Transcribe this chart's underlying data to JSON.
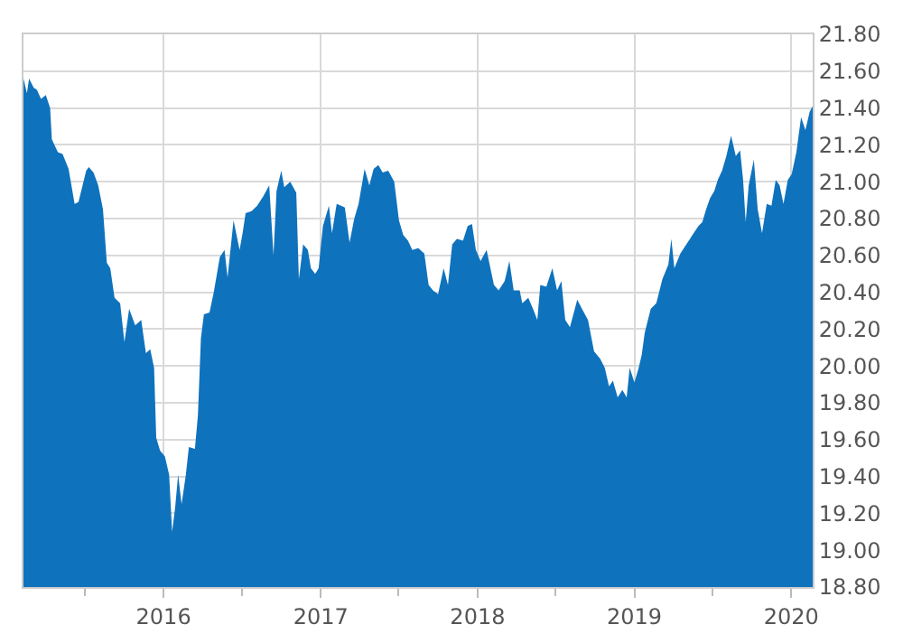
{
  "chart_data": {
    "type": "area",
    "x": [
      "2015-02-09",
      "2015-02-17",
      "2015-02-22",
      "2015-03-05",
      "2015-03-12",
      "2015-03-22",
      "2015-04-02",
      "2015-04-12",
      "2015-04-16",
      "2015-04-30",
      "2015-05-11",
      "2015-05-25",
      "2015-06-08",
      "2015-06-17",
      "2015-07-05",
      "2015-07-11",
      "2015-07-22",
      "2015-08-02",
      "2015-08-13",
      "2015-08-22",
      "2015-08-30",
      "2015-09-09",
      "2015-09-22",
      "2015-10-02",
      "2015-10-13",
      "2015-10-27",
      "2015-11-10",
      "2015-11-21",
      "2015-12-01",
      "2015-12-10",
      "2015-12-15",
      "2015-12-24",
      "2016-01-04",
      "2016-01-14",
      "2016-01-21",
      "2016-01-28",
      "2016-02-04",
      "2016-02-12",
      "2016-02-22",
      "2016-02-29",
      "2016-03-14",
      "2016-03-21",
      "2016-03-28",
      "2016-04-04",
      "2016-04-17",
      "2016-04-27",
      "2016-05-11",
      "2016-05-22",
      "2016-05-29",
      "2016-06-12",
      "2016-06-26",
      "2016-07-03",
      "2016-07-10",
      "2016-07-24",
      "2016-08-06",
      "2016-08-20",
      "2016-09-03",
      "2016-09-13",
      "2016-09-20",
      "2016-10-01",
      "2016-10-08",
      "2016-10-22",
      "2016-11-05",
      "2016-11-11",
      "2016-11-21",
      "2016-12-02",
      "2016-12-09",
      "2016-12-19",
      "2016-12-27",
      "2017-01-06",
      "2017-01-20",
      "2017-01-27",
      "2017-02-07",
      "2017-02-17",
      "2017-02-26",
      "2017-03-09",
      "2017-03-20",
      "2017-03-30",
      "2017-04-13",
      "2017-04-24",
      "2017-05-04",
      "2017-05-15",
      "2017-05-25",
      "2017-06-07",
      "2017-06-21",
      "2017-07-02",
      "2017-07-12",
      "2017-07-23",
      "2017-08-02",
      "2017-08-16",
      "2017-08-30",
      "2017-09-09",
      "2017-09-19",
      "2017-10-01",
      "2017-10-14",
      "2017-10-24",
      "2017-11-03",
      "2017-11-14",
      "2017-11-28",
      "2017-12-09",
      "2017-12-19",
      "2017-12-28",
      "2018-01-08",
      "2018-01-22",
      "2018-02-08",
      "2018-02-19",
      "2018-03-05",
      "2018-03-16",
      "2018-03-26",
      "2018-04-09",
      "2018-04-15",
      "2018-04-29",
      "2018-05-10",
      "2018-05-20",
      "2018-05-27",
      "2018-06-10",
      "2018-06-24",
      "2018-07-05",
      "2018-07-15",
      "2018-07-24",
      "2018-08-04",
      "2018-08-21",
      "2018-09-01",
      "2018-09-15",
      "2018-09-29",
      "2018-10-13",
      "2018-10-24",
      "2018-11-03",
      "2018-11-12",
      "2018-11-23",
      "2018-12-04",
      "2018-12-14",
      "2018-12-21",
      "2019-01-01",
      "2019-01-11",
      "2019-01-18",
      "2019-01-25",
      "2019-02-08",
      "2019-02-21",
      "2019-03-07",
      "2019-03-21",
      "2019-03-28",
      "2019-04-04",
      "2019-04-18",
      "2019-05-02",
      "2019-05-16",
      "2019-05-30",
      "2019-06-08",
      "2019-06-17",
      "2019-06-26",
      "2019-07-06",
      "2019-07-14",
      "2019-07-24",
      "2019-08-03",
      "2019-08-14",
      "2019-08-25",
      "2019-09-04",
      "2019-09-11",
      "2019-09-17",
      "2019-09-24",
      "2019-10-06",
      "2019-10-15",
      "2019-10-25",
      "2019-11-05",
      "2019-11-16",
      "2019-11-26",
      "2019-12-05",
      "2019-12-14",
      "2019-12-24",
      "2020-01-02",
      "2020-01-13",
      "2020-01-24",
      "2020-02-03",
      "2020-02-13",
      "2020-02-20"
    ],
    "series": [
      {
        "color": "#0f72bd",
        "values": [
          21.56,
          21.48,
          21.56,
          21.51,
          21.5,
          21.45,
          21.47,
          21.4,
          21.23,
          21.16,
          21.15,
          21.07,
          20.88,
          20.89,
          21.06,
          21.08,
          21.05,
          20.98,
          20.85,
          20.56,
          20.53,
          20.37,
          20.34,
          20.13,
          20.31,
          20.22,
          20.25,
          20.07,
          20.09,
          19.99,
          19.61,
          19.54,
          19.51,
          19.41,
          19.1,
          19.23,
          19.41,
          19.25,
          19.41,
          19.56,
          19.55,
          19.73,
          20.15,
          20.28,
          20.29,
          20.4,
          20.59,
          20.63,
          20.48,
          20.79,
          20.63,
          20.72,
          20.83,
          20.84,
          20.87,
          20.92,
          20.98,
          20.6,
          20.95,
          21.06,
          20.97,
          21.0,
          20.94,
          20.47,
          20.66,
          20.63,
          20.53,
          20.5,
          20.53,
          20.76,
          20.87,
          20.72,
          20.88,
          20.87,
          20.86,
          20.67,
          20.8,
          20.88,
          21.07,
          20.98,
          21.07,
          21.09,
          21.05,
          21.06,
          21.0,
          20.79,
          20.71,
          20.68,
          20.63,
          20.64,
          20.61,
          20.44,
          20.41,
          20.39,
          20.53,
          20.44,
          20.66,
          20.69,
          20.68,
          20.76,
          20.77,
          20.63,
          20.57,
          20.63,
          20.44,
          20.41,
          20.46,
          20.57,
          20.41,
          20.41,
          20.34,
          20.37,
          20.31,
          20.25,
          20.44,
          20.43,
          20.53,
          20.41,
          20.46,
          20.25,
          20.21,
          20.36,
          20.31,
          20.25,
          20.08,
          20.04,
          19.99,
          19.89,
          19.92,
          19.83,
          19.87,
          19.83,
          19.99,
          19.91,
          19.99,
          20.06,
          20.18,
          20.31,
          20.34,
          20.47,
          20.55,
          20.69,
          20.53,
          20.61,
          20.66,
          20.71,
          20.76,
          20.78,
          20.85,
          20.91,
          20.95,
          21.01,
          21.06,
          21.14,
          21.25,
          21.14,
          21.17,
          21.01,
          20.78,
          20.98,
          21.12,
          20.85,
          20.72,
          20.88,
          20.87,
          21.01,
          20.98,
          20.88,
          21.01,
          21.04,
          21.16,
          21.35,
          21.28,
          21.38,
          21.41
        ]
      }
    ],
    "xlim": [
      "2015-02-09",
      "2020-02-20"
    ],
    "xticks": [
      {
        "value": "2015-07-01",
        "label": null
      },
      {
        "value": "2016-01-01",
        "label": "2016"
      },
      {
        "value": "2016-07-01",
        "label": null
      },
      {
        "value": "2017-01-01",
        "label": "2017"
      },
      {
        "value": "2017-07-01",
        "label": null
      },
      {
        "value": "2018-01-01",
        "label": "2018"
      },
      {
        "value": "2018-07-01",
        "label": null
      },
      {
        "value": "2019-01-01",
        "label": "2019"
      },
      {
        "value": "2019-07-01",
        "label": null
      },
      {
        "value": "2020-01-01",
        "label": "2020"
      }
    ],
    "ylim": [
      18.8,
      21.8
    ],
    "yticks": [
      {
        "value": 18.8,
        "label": "18.80"
      },
      {
        "value": 19.0,
        "label": "19.00"
      },
      {
        "value": 19.2,
        "label": "19.20"
      },
      {
        "value": 19.4,
        "label": "19.40"
      },
      {
        "value": 19.6,
        "label": "19.60"
      },
      {
        "value": 19.8,
        "label": "19.80"
      },
      {
        "value": 20.0,
        "label": "20.00"
      },
      {
        "value": 20.2,
        "label": "20.20"
      },
      {
        "value": 20.4,
        "label": "20.40"
      },
      {
        "value": 20.6,
        "label": "20.60"
      },
      {
        "value": 20.8,
        "label": "20.80"
      },
      {
        "value": 21.0,
        "label": "21.00"
      },
      {
        "value": 21.2,
        "label": "21.20"
      },
      {
        "value": 21.4,
        "label": "21.40"
      },
      {
        "value": 21.6,
        "label": "21.60"
      },
      {
        "value": 21.8,
        "label": "21.80"
      }
    ],
    "grid": true
  }
}
